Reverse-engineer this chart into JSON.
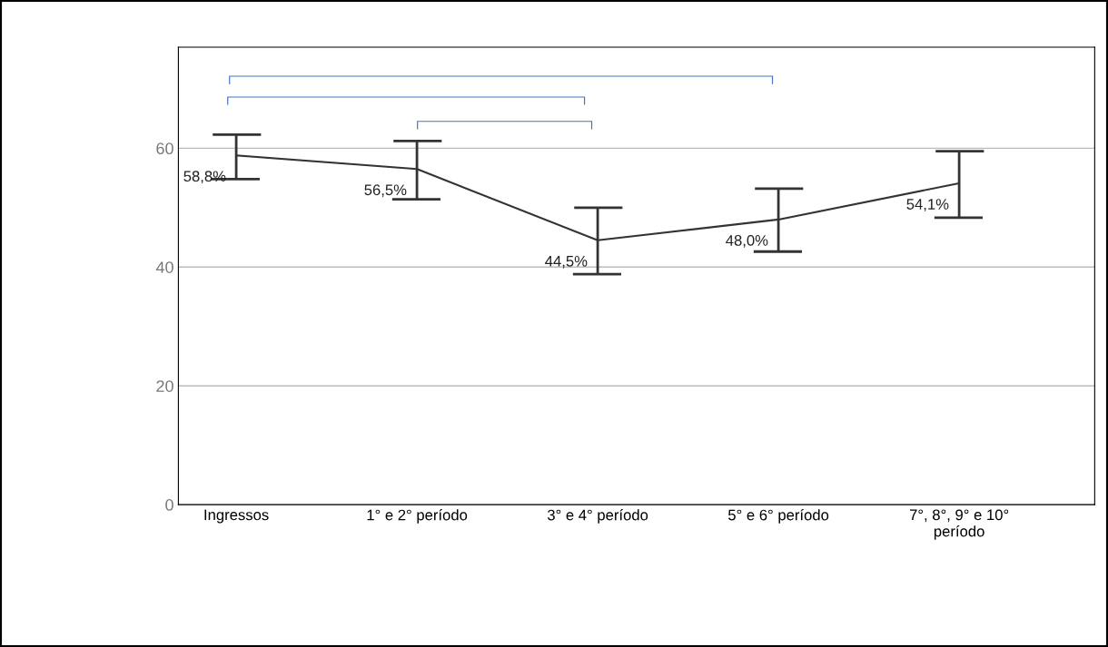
{
  "chart_data": {
    "type": "line",
    "categories": [
      "Ingressos",
      "1° e 2° período",
      "3° e 4° período",
      "5° e 6° período",
      "7°, 8°, 9° e 10°\nperíodo"
    ],
    "series": [
      {
        "color": "#333333",
        "values": [
          58.8,
          56.5,
          44.5,
          48.0,
          54.1
        ],
        "errors": [
          [
            54.8,
            62.3
          ],
          [
            51.4,
            61.2
          ],
          [
            38.8,
            50.0
          ],
          [
            42.6,
            53.2
          ],
          [
            48.3,
            59.5
          ]
        ],
        "value_labels": [
          "58,8%",
          "56,5%",
          "44,5%",
          "48,0%",
          "54,1%"
        ]
      }
    ],
    "ylim": [
      0,
      77
    ],
    "yticks": [
      0,
      20,
      40,
      60
    ],
    "grid": "y",
    "legend": false,
    "marker": "none",
    "line_style": "solid"
  }
}
